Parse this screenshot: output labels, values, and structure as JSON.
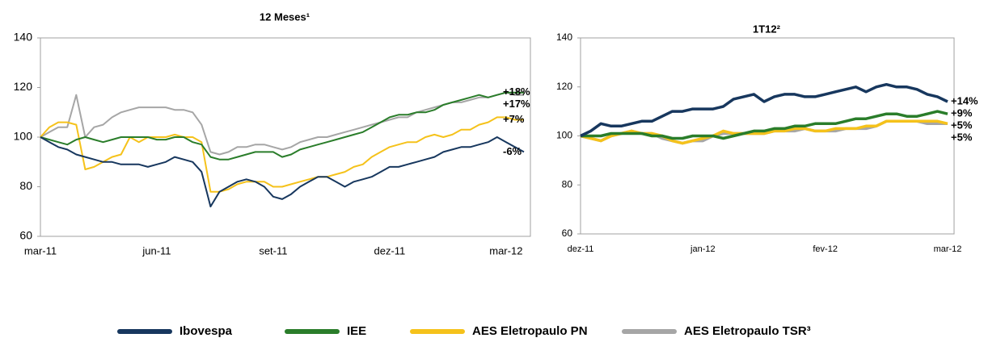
{
  "chart_data": [
    {
      "type": "line",
      "title": "12 Meses¹",
      "categories": [
        "mar-11",
        null,
        null,
        null,
        null,
        null,
        null,
        null,
        null,
        null,
        null,
        null,
        null,
        "jun-11",
        null,
        null,
        null,
        null,
        null,
        null,
        null,
        null,
        null,
        null,
        null,
        null,
        "set-11",
        null,
        null,
        null,
        null,
        null,
        null,
        null,
        null,
        null,
        null,
        null,
        null,
        "dez-11",
        null,
        null,
        null,
        null,
        null,
        null,
        null,
        null,
        null,
        null,
        null,
        null,
        "mar-12",
        null,
        null
      ],
      "ylim": [
        60,
        140
      ],
      "yticks": [
        60,
        80,
        100,
        120,
        140
      ],
      "series": [
        {
          "name": "Ibovespa",
          "color": "#17375e",
          "end_label": "-6%",
          "values": [
            100,
            98,
            96,
            95,
            93,
            92,
            91,
            90,
            90,
            89,
            89,
            89,
            88,
            89,
            90,
            92,
            91,
            90,
            86,
            72,
            78,
            80,
            82,
            83,
            82,
            80,
            76,
            75,
            77,
            80,
            82,
            84,
            84,
            82,
            80,
            82,
            83,
            84,
            86,
            88,
            88,
            89,
            90,
            91,
            92,
            94,
            95,
            96,
            96,
            97,
            98,
            100,
            98,
            96,
            94
          ]
        },
        {
          "name": "IEE",
          "color": "#2a7d2a",
          "end_label": "+18%",
          "values": [
            100,
            99,
            98,
            97,
            99,
            100,
            99,
            98,
            99,
            100,
            100,
            100,
            100,
            99,
            99,
            100,
            100,
            98,
            97,
            92,
            91,
            91,
            92,
            93,
            94,
            94,
            94,
            92,
            93,
            95,
            96,
            97,
            98,
            99,
            100,
            101,
            102,
            104,
            106,
            108,
            109,
            109,
            110,
            110,
            111,
            113,
            114,
            115,
            116,
            117,
            116,
            117,
            118,
            118,
            118
          ]
        },
        {
          "name": "AES Eletropaulo PN",
          "color": "#f5c21b",
          "end_label": "+7%",
          "values": [
            100,
            104,
            106,
            106,
            105,
            87,
            88,
            90,
            92,
            93,
            100,
            98,
            100,
            100,
            100,
            101,
            100,
            100,
            98,
            78,
            78,
            79,
            81,
            82,
            82,
            82,
            80,
            80,
            81,
            82,
            83,
            84,
            84,
            85,
            86,
            88,
            89,
            92,
            94,
            96,
            97,
            98,
            98,
            100,
            101,
            100,
            101,
            103,
            103,
            105,
            106,
            108,
            108,
            107,
            107
          ]
        },
        {
          "name": "AES Eletropaulo TSR³",
          "color": "#a6a6a6",
          "end_label": "+17%",
          "values": [
            100,
            102,
            104,
            104,
            117,
            100,
            104,
            105,
            108,
            110,
            111,
            112,
            112,
            112,
            112,
            111,
            111,
            110,
            105,
            94,
            93,
            94,
            96,
            96,
            97,
            97,
            96,
            95,
            96,
            98,
            99,
            100,
            100,
            101,
            102,
            103,
            104,
            105,
            106,
            107,
            108,
            108,
            110,
            111,
            112,
            113,
            114,
            114,
            115,
            116,
            116,
            117,
            118,
            117,
            117
          ]
        }
      ]
    },
    {
      "type": "line",
      "title": "1T12²",
      "categories": [
        "dez-11",
        null,
        null,
        null,
        null,
        null,
        null,
        null,
        null,
        null,
        null,
        null,
        "jan-12",
        null,
        null,
        null,
        null,
        null,
        null,
        null,
        null,
        null,
        null,
        null,
        "fev-12",
        null,
        null,
        null,
        null,
        null,
        null,
        null,
        null,
        null,
        null,
        null,
        "mar-12"
      ],
      "ylim": [
        60,
        140
      ],
      "yticks": [
        60,
        80,
        100,
        120,
        140
      ],
      "series": [
        {
          "color": "#17375e",
          "end_label": "+14%",
          "values": [
            100,
            102,
            105,
            104,
            104,
            105,
            106,
            106,
            108,
            110,
            110,
            111,
            111,
            111,
            112,
            115,
            116,
            117,
            114,
            116,
            117,
            117,
            116,
            116,
            117,
            118,
            119,
            120,
            118,
            120,
            121,
            120,
            120,
            119,
            117,
            116,
            114
          ]
        },
        {
          "color": "#2a7d2a",
          "end_label": "+9%",
          "values": [
            100,
            100,
            100,
            101,
            101,
            101,
            101,
            100,
            100,
            99,
            99,
            100,
            100,
            100,
            99,
            100,
            101,
            102,
            102,
            103,
            103,
            104,
            104,
            105,
            105,
            105,
            106,
            107,
            107,
            108,
            109,
            109,
            108,
            108,
            109,
            110,
            109
          ]
        },
        {
          "color": "#f5c21b",
          "end_label": "+5%",
          "values": [
            100,
            99,
            98,
            100,
            101,
            102,
            101,
            101,
            100,
            98,
            97,
            98,
            99,
            100,
            102,
            101,
            101,
            101,
            101,
            102,
            102,
            103,
            103,
            102,
            102,
            103,
            103,
            103,
            104,
            104,
            106,
            106,
            106,
            106,
            106,
            106,
            105
          ]
        },
        {
          "color": "#a6a6a6",
          "end_label": "+5%",
          "values": [
            100,
            99,
            98,
            100,
            101,
            102,
            101,
            101,
            99,
            98,
            97,
            98,
            98,
            100,
            101,
            101,
            101,
            101,
            101,
            102,
            102,
            102,
            103,
            102,
            102,
            102,
            103,
            103,
            103,
            104,
            106,
            106,
            106,
            106,
            105,
            105,
            105
          ]
        }
      ]
    }
  ]
}
